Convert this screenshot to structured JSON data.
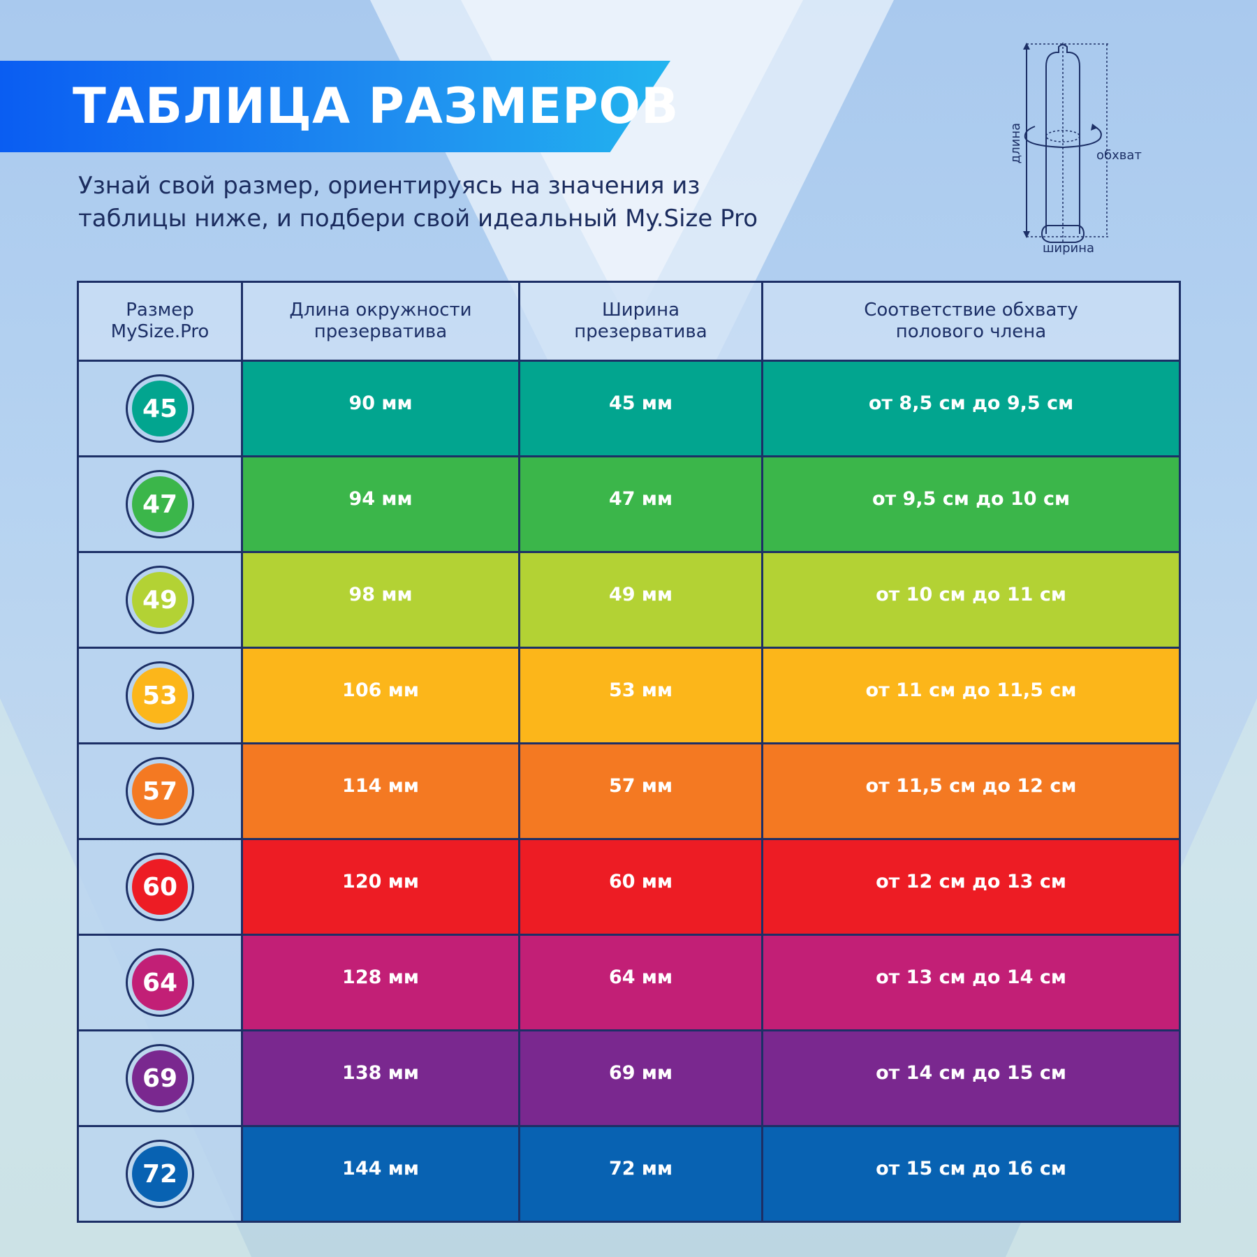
{
  "header": {
    "title": "ТАБЛИЦА РАЗМЕРОВ",
    "subtitle_line1": "Узнай свой размер, ориентируясь на значения из",
    "subtitle_line2": "таблицы ниже, и подбери свой идеальный My.Size Pro"
  },
  "diagram": {
    "length_label": "длина",
    "girth_label": "обхват",
    "width_label": "ширина"
  },
  "table": {
    "headers": [
      [
        "Размер",
        "MySize.Pro"
      ],
      [
        "Длина окружности",
        "презерватива"
      ],
      [
        "Ширина",
        "презерватива"
      ],
      [
        "Соответствие обхвату",
        "полового члена"
      ]
    ],
    "rows": [
      {
        "size": "45",
        "circumference": "90 мм",
        "width": "45 мм",
        "girth": "от 8,5 см до 9,5 см",
        "color": "#02a58f"
      },
      {
        "size": "47",
        "circumference": "94 мм",
        "width": "47 мм",
        "girth": "от 9,5 см до 10 см",
        "color": "#3bb64a"
      },
      {
        "size": "49",
        "circumference": "98 мм",
        "width": "49 мм",
        "girth": "от 10 см до 11 см",
        "color": "#b3d234"
      },
      {
        "size": "53",
        "circumference": "106 мм",
        "width": "53 мм",
        "girth": "от 11 см до 11,5 см",
        "color": "#fcb61a"
      },
      {
        "size": "57",
        "circumference": "114 мм",
        "width": "57 мм",
        "girth": "от 11,5 см до 12 см",
        "color": "#f47922"
      },
      {
        "size": "60",
        "circumference": "120 мм",
        "width": "60 мм",
        "girth": "от 12 см до 13 см",
        "color": "#ed1c24"
      },
      {
        "size": "64",
        "circumference": "128 мм",
        "width": "64 мм",
        "girth": "от 13 см до 14 см",
        "color": "#c21f76"
      },
      {
        "size": "69",
        "circumference": "138 мм",
        "width": "69 мм",
        "girth": "от 14 см до 15 см",
        "color": "#7a288f"
      },
      {
        "size": "72",
        "circumference": "144 мм",
        "width": "72 мм",
        "girth": "от 15 см до 16 см",
        "color": "#0862b2"
      }
    ]
  }
}
